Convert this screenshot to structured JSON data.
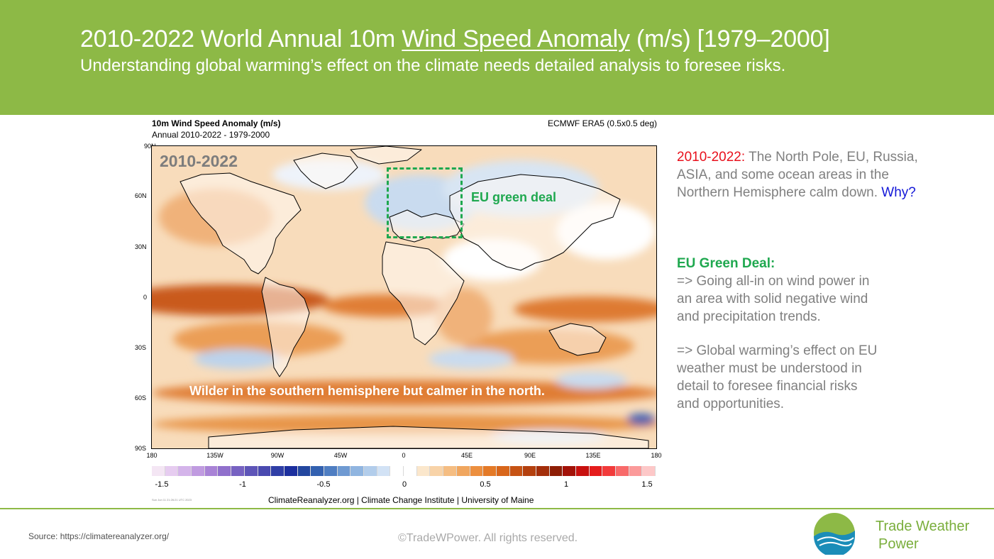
{
  "header": {
    "title_prefix": "2010-2022 World Annual 10m ",
    "title_underlined": "Wind Speed Anomaly",
    "title_suffix": " (m/s) [1979–2000]",
    "subtitle": "Understanding global warming’s effect on the climate needs detailed analysis to foresee risks.",
    "background_color": "#8db946"
  },
  "figure": {
    "title": "10m Wind Speed Anomaly (m/s)",
    "subtitle": "Annual 2010-2022 - 1979-2000",
    "source": "ECMWF ERA5 (0.5x0.5 deg)",
    "lat_labels": [
      "90N",
      "60N",
      "30N",
      "0",
      "30S",
      "60S",
      "90S"
    ],
    "lon_labels": [
      "180",
      "135W",
      "90W",
      "45W",
      "0",
      "45E",
      "90E",
      "135E",
      "180"
    ],
    "colorbar_ticks": [
      "-1.5",
      "-1",
      "-0.5",
      "0",
      "0.5",
      "1",
      "1.5"
    ],
    "colorbar_colors": [
      "#f4e6f4",
      "#e6ccf0",
      "#d4b4ea",
      "#c09be0",
      "#a983d6",
      "#9070cc",
      "#7762c2",
      "#5e55b8",
      "#4a4ab0",
      "#2f3ea6",
      "#1c2f9e",
      "#23479f",
      "#3361b0",
      "#4f7ec2",
      "#6f9ad2",
      "#90b5e0",
      "#b2cdeb",
      "#d2e2f5",
      "#ffffff",
      "#ffffff",
      "#fbe7cc",
      "#f8d3a8",
      "#f5bd82",
      "#f0a65f",
      "#ec8f3f",
      "#e47a27",
      "#d8661b",
      "#c65314",
      "#b4400e",
      "#a32e0a",
      "#8e1e06",
      "#a31208",
      "#c8100e",
      "#e51c1c",
      "#f23b3b",
      "#f86a6a",
      "#fb9a9a",
      "#fdc8c8"
    ],
    "credit": "ClimateReanalyzer.org | Climate Change Institute | University of Maine",
    "timestamp": "Sun Jun 11 21:26:21 UTC 2023",
    "year_label": "2010-2022",
    "eu_box_label": "EU green deal",
    "note": "Wilder in the southern hemisphere but calmer in the north."
  },
  "side": {
    "p1_highlight": "2010-2022:",
    "p1_text": " The North Pole, EU, Russia, ASIA, and some ocean areas in the Northern Hemisphere calm down. ",
    "p1_question": "Why?",
    "p2_heading": "EU Green Deal:",
    "p2_text": "=> Going all-in on wind power in an area with solid negative wind and precipitation trends.",
    "p3_text": "=> Global warming’s effect on EU weather must be understood in detail to foresee financial risks and opportunities.",
    "colors": {
      "highlight": "#e8101c",
      "question": "#1418d8",
      "heading": "#1fa84f",
      "body": "#808080"
    }
  },
  "footer": {
    "source": "Source: https://climatereanalyzer.org/",
    "copyright": "©TradeWPower. All rights reserved.",
    "brand_line1": "Trade Weather",
    "brand_line2": "Power",
    "brand_color": "#7aae3c"
  }
}
